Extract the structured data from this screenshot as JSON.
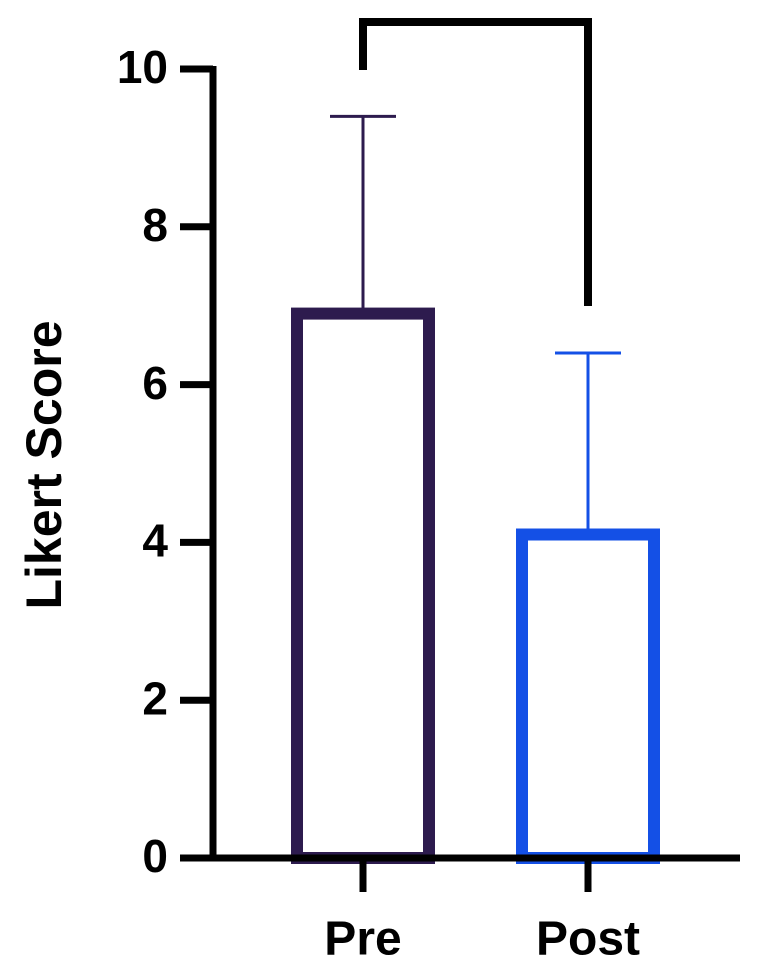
{
  "chart_data": {
    "type": "bar",
    "y_label": "Likert Score",
    "categories": [
      "Pre",
      "Post"
    ],
    "values": [
      6.9,
      4.1
    ],
    "errors": [
      2.5,
      2.3
    ],
    "colors": [
      "#2d1b4e",
      "#1450e6"
    ],
    "ylim": [
      0,
      10
    ],
    "yticks": [
      0,
      2,
      4,
      6,
      8,
      10
    ],
    "grid": false
  }
}
